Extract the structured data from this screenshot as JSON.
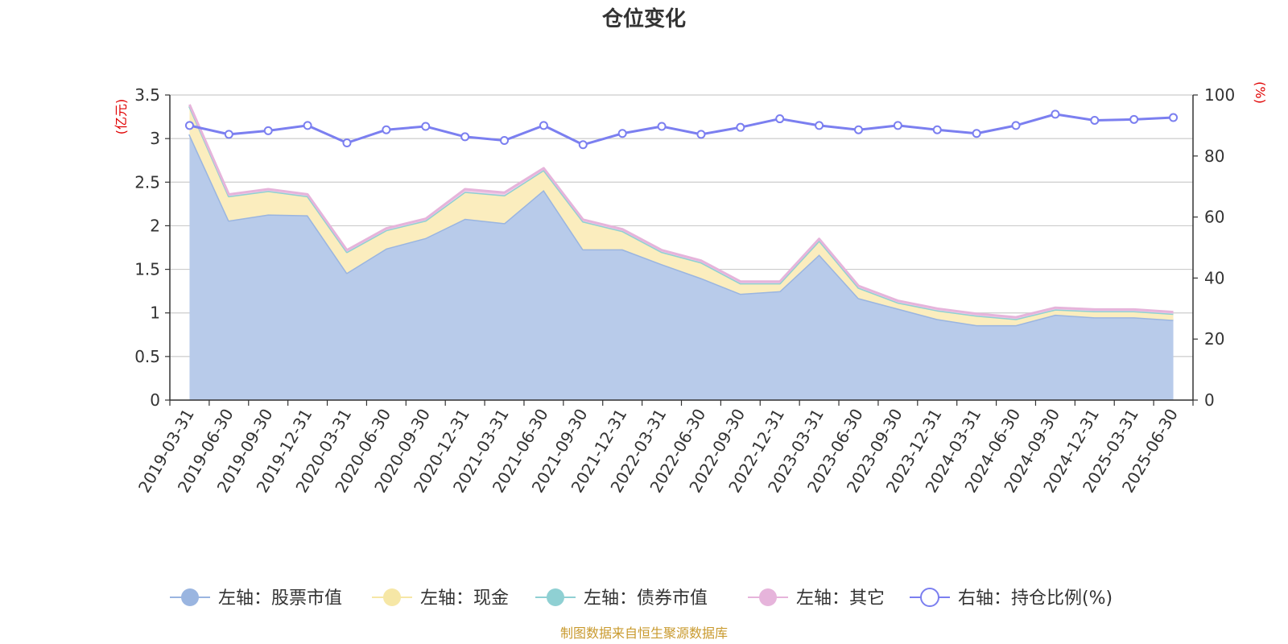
{
  "chart_data": {
    "type": "area",
    "title": "仓位变化",
    "left_unit": "(亿元)",
    "right_unit": "(%)",
    "categories": [
      "2019-03-31",
      "2019-06-30",
      "2019-09-30",
      "2019-12-31",
      "2020-03-31",
      "2020-06-30",
      "2020-09-30",
      "2020-12-31",
      "2021-03-31",
      "2021-06-30",
      "2021-09-30",
      "2021-12-31",
      "2022-03-31",
      "2022-06-30",
      "2022-09-30",
      "2022-12-31",
      "2023-03-31",
      "2023-06-30",
      "2023-09-30",
      "2023-12-31",
      "2024-03-31",
      "2024-06-30",
      "2024-09-30",
      "2024-12-31",
      "2025-03-31",
      "2025-06-30"
    ],
    "left_axis": {
      "min": 0,
      "max": 3.5,
      "ticks": [
        "0",
        "0.5",
        "1",
        "1.5",
        "2",
        "2.5",
        "3",
        "3.5"
      ]
    },
    "right_axis": {
      "min": 0,
      "max": 100,
      "ticks": [
        "0",
        "20",
        "40",
        "60",
        "80",
        "100"
      ]
    },
    "series": [
      {
        "name": "左轴：股票市值",
        "axis": "left",
        "stack": true,
        "color": "#9ab5e0",
        "fill": "#b8cbea",
        "values": [
          3.05,
          2.06,
          2.13,
          2.12,
          1.46,
          1.74,
          1.86,
          2.08,
          2.03,
          2.41,
          1.73,
          1.73,
          1.56,
          1.4,
          1.22,
          1.25,
          1.67,
          1.17,
          1.05,
          0.93,
          0.86,
          0.86,
          0.98,
          0.95,
          0.95,
          0.92
        ]
      },
      {
        "name": "左轴：现金",
        "axis": "left",
        "stack": true,
        "color": "#f6e7a6",
        "fill": "#fbedbe",
        "values": [
          0.32,
          0.28,
          0.27,
          0.22,
          0.24,
          0.21,
          0.2,
          0.31,
          0.32,
          0.23,
          0.32,
          0.21,
          0.14,
          0.18,
          0.12,
          0.09,
          0.16,
          0.12,
          0.07,
          0.1,
          0.11,
          0.07,
          0.06,
          0.07,
          0.07,
          0.07
        ]
      },
      {
        "name": "左轴：债券市值",
        "axis": "left",
        "stack": true,
        "color": "#8fd0d3",
        "fill": "#b8e3e5",
        "values": [
          0,
          0,
          0,
          0,
          0,
          0,
          0,
          0,
          0,
          0,
          0,
          0,
          0,
          0,
          0,
          0,
          0,
          0,
          0,
          0,
          0,
          0,
          0,
          0,
          0,
          0
        ]
      },
      {
        "name": "左轴：其它",
        "axis": "left",
        "stack": true,
        "color": "#e6b4db",
        "fill": "#f0cde8",
        "values": [
          0.02,
          0.02,
          0.02,
          0.02,
          0.02,
          0.02,
          0.02,
          0.03,
          0.03,
          0.02,
          0.02,
          0.02,
          0.02,
          0.02,
          0.02,
          0.02,
          0.02,
          0.02,
          0.02,
          0.02,
          0.02,
          0.02,
          0.02,
          0.02,
          0.02,
          0.02
        ]
      },
      {
        "name": "右轴：持仓比例(%)",
        "axis": "right",
        "stack": false,
        "color": "#7b7ff0",
        "values": [
          90.0,
          87.1,
          88.3,
          90.0,
          84.3,
          88.6,
          89.7,
          86.3,
          85.1,
          90.0,
          83.7,
          87.4,
          89.7,
          87.1,
          89.4,
          92.2,
          90.0,
          88.6,
          90.0,
          88.6,
          87.4,
          90.0,
          93.7,
          91.7,
          92.0,
          92.6
        ]
      }
    ],
    "grid": true,
    "legend_position": "bottom"
  },
  "footer": {
    "source": "制图数据来自恒生聚源数据库"
  }
}
